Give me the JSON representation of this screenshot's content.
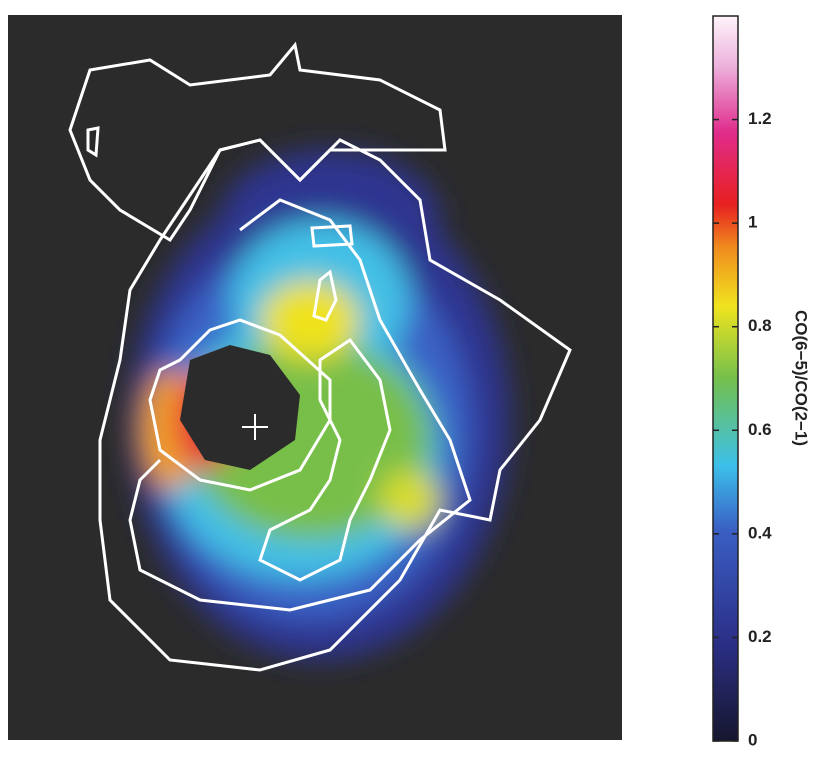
{
  "chart_data": {
    "type": "heatmap",
    "colorbar": {
      "label": "CO(6−5)/CO(2−1)",
      "lim": [
        0,
        1.4
      ],
      "ticks": [
        0,
        0.2,
        0.4,
        0.6,
        0.8,
        1,
        1.2
      ]
    }
  }
}
